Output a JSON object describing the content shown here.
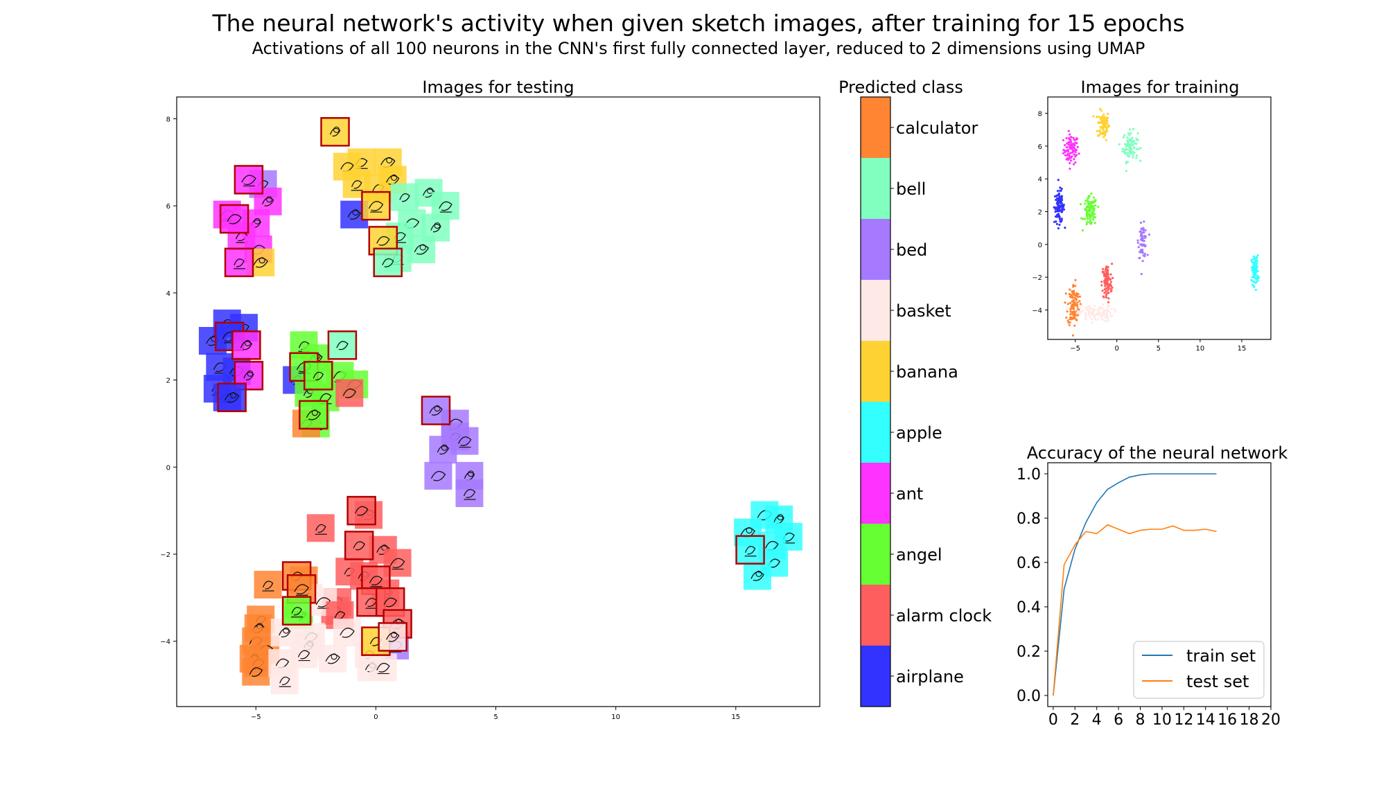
{
  "figure": {
    "title": "The neural network's activity when given sketch images, after training for 15 epochs",
    "subtitle": "Activations of all 100 neurons in the CNN's first fully connected layer, reduced to 2 dimensions using UMAP"
  },
  "colors": {
    "calculator": "#ff8533",
    "bell": "#80ffbf",
    "bed": "#a679ff",
    "basket": "#ffe9e6",
    "banana": "#ffd233",
    "apple": "#33ffff",
    "ant": "#ff33ff",
    "angel": "#66ff33",
    "alarm clock": "#ff5e5e",
    "airplane": "#3333ff",
    "highlight_border": "#b30000",
    "train_line": "#1f77b4",
    "test_line": "#ff7f0e"
  },
  "chart_data": [
    {
      "type": "scatter",
      "title": "Images for testing",
      "xlim": [
        -8.3,
        18.5
      ],
      "ylim": [
        -5.5,
        8.5
      ],
      "xticks": [
        "−5",
        "0",
        "5",
        "10",
        "15"
      ],
      "yticks": [
        "−4",
        "−2",
        "0",
        "2",
        "4",
        "6",
        "8"
      ],
      "note_markers": "each point drawn as a sketch thumbnail tinted with the predicted class color; red outline marks highlighted thumbnails",
      "points": [
        {
          "x": -1.7,
          "y": 7.7,
          "c": "banana",
          "h": true
        },
        {
          "x": -0.6,
          "y": 7.0,
          "c": "banana"
        },
        {
          "x": -1.2,
          "y": 6.9,
          "c": "banana"
        },
        {
          "x": 0.5,
          "y": 7.0,
          "c": "banana"
        },
        {
          "x": -0.8,
          "y": 6.5,
          "c": "banana"
        },
        {
          "x": 0.1,
          "y": 6.4,
          "c": "banana"
        },
        {
          "x": 0.7,
          "y": 6.6,
          "c": "banana"
        },
        {
          "x": 0.0,
          "y": 6.0,
          "c": "banana",
          "h": true
        },
        {
          "x": 1.2,
          "y": 6.2,
          "c": "bell"
        },
        {
          "x": 2.2,
          "y": 6.3,
          "c": "bell"
        },
        {
          "x": 2.9,
          "y": 6.0,
          "c": "bell"
        },
        {
          "x": 1.5,
          "y": 5.6,
          "c": "bell"
        },
        {
          "x": 2.5,
          "y": 5.5,
          "c": "bell"
        },
        {
          "x": 1.0,
          "y": 5.3,
          "c": "bell"
        },
        {
          "x": 0.3,
          "y": 5.2,
          "c": "banana",
          "h": true
        },
        {
          "x": 1.9,
          "y": 5.0,
          "c": "bell"
        },
        {
          "x": 0.9,
          "y": 4.8,
          "c": "bell"
        },
        {
          "x": 0.5,
          "y": 4.7,
          "c": "bell",
          "h": true
        },
        {
          "x": -0.9,
          "y": 5.8,
          "c": "airplane"
        },
        {
          "x": -5.3,
          "y": 6.6,
          "c": "ant",
          "h": true
        },
        {
          "x": -4.7,
          "y": 6.5,
          "c": "bed"
        },
        {
          "x": -4.5,
          "y": 6.1,
          "c": "ant"
        },
        {
          "x": -6.2,
          "y": 5.8,
          "c": "ant"
        },
        {
          "x": -5.9,
          "y": 5.7,
          "c": "ant",
          "h": true
        },
        {
          "x": -5.0,
          "y": 5.6,
          "c": "ant"
        },
        {
          "x": -5.6,
          "y": 5.3,
          "c": "ant"
        },
        {
          "x": -4.9,
          "y": 5.0,
          "c": "ant"
        },
        {
          "x": -4.8,
          "y": 4.7,
          "c": "banana"
        },
        {
          "x": -5.7,
          "y": 4.7,
          "c": "ant",
          "h": true
        },
        {
          "x": -6.2,
          "y": 3.3,
          "c": "airplane"
        },
        {
          "x": -6.8,
          "y": 2.9,
          "c": "airplane"
        },
        {
          "x": -6.1,
          "y": 3.0,
          "c": "airplane",
          "h": true
        },
        {
          "x": -5.5,
          "y": 3.2,
          "c": "airplane"
        },
        {
          "x": -5.4,
          "y": 2.8,
          "c": "ant",
          "h": true
        },
        {
          "x": -6.5,
          "y": 2.3,
          "c": "airplane"
        },
        {
          "x": -5.8,
          "y": 2.2,
          "c": "airplane"
        },
        {
          "x": -5.3,
          "y": 2.1,
          "c": "ant",
          "h": true
        },
        {
          "x": -6.6,
          "y": 1.8,
          "c": "airplane"
        },
        {
          "x": -6.2,
          "y": 1.6,
          "c": "airplane"
        },
        {
          "x": -6.0,
          "y": 1.6,
          "c": "airplane",
          "h": true
        },
        {
          "x": -3.0,
          "y": 2.8,
          "c": "angel"
        },
        {
          "x": -1.4,
          "y": 2.8,
          "c": "bell",
          "h": true
        },
        {
          "x": -2.5,
          "y": 2.5,
          "c": "angel"
        },
        {
          "x": -3.0,
          "y": 2.3,
          "c": "angel",
          "h": true
        },
        {
          "x": -2.4,
          "y": 2.1,
          "c": "angel",
          "h": true
        },
        {
          "x": -3.3,
          "y": 2.0,
          "c": "airplane"
        },
        {
          "x": -1.5,
          "y": 2.1,
          "c": "angel"
        },
        {
          "x": -0.9,
          "y": 1.9,
          "c": "angel"
        },
        {
          "x": -2.8,
          "y": 1.7,
          "c": "angel"
        },
        {
          "x": -2.1,
          "y": 1.6,
          "c": "angel"
        },
        {
          "x": -1.1,
          "y": 1.7,
          "c": "alarm clock"
        },
        {
          "x": -2.6,
          "y": 1.2,
          "c": "angel",
          "h": true
        },
        {
          "x": -2.5,
          "y": 1.0,
          "c": "angel"
        },
        {
          "x": -2.9,
          "y": 1.0,
          "c": "calculator"
        },
        {
          "x": 2.5,
          "y": 1.3,
          "c": "bed",
          "h": true
        },
        {
          "x": 3.3,
          "y": 1.0,
          "c": "bed"
        },
        {
          "x": 3.3,
          "y": 0.7,
          "c": "bed"
        },
        {
          "x": 2.8,
          "y": 0.4,
          "c": "bed"
        },
        {
          "x": 3.7,
          "y": 0.6,
          "c": "bed"
        },
        {
          "x": 2.6,
          "y": -0.2,
          "c": "bed"
        },
        {
          "x": 3.9,
          "y": -0.2,
          "c": "bed"
        },
        {
          "x": 3.9,
          "y": -0.6,
          "c": "bed"
        },
        {
          "x": -0.6,
          "y": -1.0,
          "c": "alarm clock",
          "h": true
        },
        {
          "x": -0.3,
          "y": -1.1,
          "c": "alarm clock"
        },
        {
          "x": -2.3,
          "y": -1.4,
          "c": "alarm clock"
        },
        {
          "x": -0.7,
          "y": -1.8,
          "c": "alarm clock",
          "h": true
        },
        {
          "x": 0.3,
          "y": -1.9,
          "c": "alarm clock"
        },
        {
          "x": 0.9,
          "y": -2.2,
          "c": "alarm clock"
        },
        {
          "x": -1.1,
          "y": -2.4,
          "c": "alarm clock"
        },
        {
          "x": -0.5,
          "y": -2.5,
          "c": "alarm clock"
        },
        {
          "x": 0.0,
          "y": -2.6,
          "c": "alarm clock",
          "h": true
        },
        {
          "x": 0.4,
          "y": -2.9,
          "c": "alarm clock"
        },
        {
          "x": -1.6,
          "y": -3.1,
          "c": "alarm clock"
        },
        {
          "x": -0.2,
          "y": -3.1,
          "c": "alarm clock",
          "h": true
        },
        {
          "x": 0.6,
          "y": -3.1,
          "c": "alarm clock",
          "h": true
        },
        {
          "x": 0.9,
          "y": -3.6,
          "c": "alarm clock",
          "h": true
        },
        {
          "x": -4.5,
          "y": -2.7,
          "c": "calculator"
        },
        {
          "x": -3.3,
          "y": -2.5,
          "c": "calculator",
          "h": true
        },
        {
          "x": -3.0,
          "y": -2.6,
          "c": "calculator"
        },
        {
          "x": -3.1,
          "y": -2.8,
          "c": "calculator",
          "h": true
        },
        {
          "x": -4.8,
          "y": -3.5,
          "c": "calculator"
        },
        {
          "x": -4.9,
          "y": -3.7,
          "c": "calculator"
        },
        {
          "x": -5.0,
          "y": -4.0,
          "c": "calculator"
        },
        {
          "x": -4.6,
          "y": -4.2,
          "c": "calculator"
        },
        {
          "x": -5.1,
          "y": -4.4,
          "c": "calculator"
        },
        {
          "x": -4.9,
          "y": -4.5,
          "c": "calculator"
        },
        {
          "x": -5.0,
          "y": -4.7,
          "c": "calculator"
        },
        {
          "x": -3.2,
          "y": -3.4,
          "c": "angel"
        },
        {
          "x": -3.3,
          "y": -3.3,
          "c": "angel",
          "h": true
        },
        {
          "x": -1.7,
          "y": -3.3,
          "c": "alarm clock"
        },
        {
          "x": -2.8,
          "y": -3.0,
          "c": "basket"
        },
        {
          "x": -2.2,
          "y": -3.1,
          "c": "basket"
        },
        {
          "x": -1.5,
          "y": -3.4,
          "c": "alarm clock"
        },
        {
          "x": -3.8,
          "y": -3.8,
          "c": "basket"
        },
        {
          "x": -2.7,
          "y": -3.9,
          "c": "basket"
        },
        {
          "x": -1.2,
          "y": -3.8,
          "c": "basket"
        },
        {
          "x": -2.8,
          "y": -4.1,
          "c": "basket"
        },
        {
          "x": -3.0,
          "y": -4.3,
          "c": "basket"
        },
        {
          "x": -3.9,
          "y": -4.5,
          "c": "basket"
        },
        {
          "x": -1.8,
          "y": -4.4,
          "c": "basket"
        },
        {
          "x": -3.8,
          "y": -4.9,
          "c": "basket"
        },
        {
          "x": 0.0,
          "y": -4.0,
          "c": "banana",
          "h": true
        },
        {
          "x": 0.7,
          "y": -3.9,
          "c": "basket",
          "h": true
        },
        {
          "x": 0.8,
          "y": -4.1,
          "c": "bed"
        },
        {
          "x": -0.3,
          "y": -4.3,
          "c": "basket"
        },
        {
          "x": -0.2,
          "y": -4.6,
          "c": "basket"
        },
        {
          "x": 0.3,
          "y": -4.6,
          "c": "basket"
        },
        {
          "x": 16.2,
          "y": -1.1,
          "c": "apple"
        },
        {
          "x": 16.8,
          "y": -1.2,
          "c": "apple"
        },
        {
          "x": 17.2,
          "y": -1.6,
          "c": "apple"
        },
        {
          "x": 16.5,
          "y": -1.8,
          "c": "apple"
        },
        {
          "x": 15.5,
          "y": -1.5,
          "c": "apple"
        },
        {
          "x": 15.6,
          "y": -1.9,
          "c": "apple",
          "h": true
        },
        {
          "x": 16.6,
          "y": -2.2,
          "c": "apple"
        },
        {
          "x": 15.9,
          "y": -2.5,
          "c": "apple"
        }
      ]
    },
    {
      "type": "colorbar",
      "title": "Predicted class",
      "classes": [
        "calculator",
        "bell",
        "bed",
        "basket",
        "banana",
        "apple",
        "ant",
        "angel",
        "alarm clock",
        "airplane"
      ]
    },
    {
      "type": "scatter",
      "title": "Images for training",
      "xlim": [
        -8.3,
        18.5
      ],
      "ylim": [
        -5.8,
        9.0
      ],
      "xticks": [
        "−5",
        "0",
        "5",
        "10",
        "15"
      ],
      "yticks": [
        "−4",
        "−2",
        "0",
        "2",
        "4",
        "6",
        "8"
      ],
      "clusters": [
        {
          "c": "ant",
          "x": -5.5,
          "y": 5.8,
          "sx": 0.45,
          "sy": 0.45,
          "n": 90
        },
        {
          "c": "banana",
          "x": -1.6,
          "y": 7.3,
          "sx": 0.35,
          "sy": 0.45,
          "n": 90
        },
        {
          "c": "bell",
          "x": 1.6,
          "y": 6.0,
          "sx": 0.45,
          "sy": 0.45,
          "n": 90
        },
        {
          "c": "airplane",
          "x": -6.9,
          "y": 2.3,
          "sx": 0.3,
          "sy": 0.5,
          "n": 110
        },
        {
          "c": "angel",
          "x": -3.2,
          "y": 2.0,
          "sx": 0.4,
          "sy": 0.45,
          "n": 100
        },
        {
          "c": "bed",
          "x": 3.1,
          "y": 0.2,
          "sx": 0.25,
          "sy": 0.5,
          "n": 70
        },
        {
          "c": "alarm clock",
          "x": -1.2,
          "y": -2.3,
          "sx": 0.3,
          "sy": 0.55,
          "n": 100
        },
        {
          "c": "calculator",
          "x": -5.2,
          "y": -3.7,
          "sx": 0.35,
          "sy": 0.65,
          "n": 110
        },
        {
          "c": "basket",
          "x": -2.5,
          "y": -4.2,
          "sx": 1.0,
          "sy": 0.25,
          "n": 110
        },
        {
          "c": "apple",
          "x": 16.6,
          "y": -1.6,
          "sx": 0.2,
          "sy": 0.45,
          "n": 90
        }
      ]
    },
    {
      "type": "line",
      "title": "Accuracy of the neural network",
      "xlim": [
        -0.5,
        20
      ],
      "ylim": [
        -0.05,
        1.05
      ],
      "xticks": [
        "0",
        "2",
        "4",
        "6",
        "8",
        "10",
        "12",
        "14",
        "16",
        "18",
        "20"
      ],
      "yticks": [
        "0.0",
        "0.2",
        "0.4",
        "0.6",
        "0.8",
        "1.0"
      ],
      "x": [
        0,
        1,
        2,
        3,
        4,
        5,
        6,
        7,
        8,
        9,
        10,
        11,
        12,
        13,
        14,
        15
      ],
      "series": [
        {
          "name": "train set",
          "color": "#1f77b4",
          "values": [
            0.0,
            0.48,
            0.66,
            0.78,
            0.87,
            0.93,
            0.96,
            0.985,
            0.995,
            1.0,
            1.0,
            1.0,
            1.0,
            1.0,
            1.0,
            1.0
          ]
        },
        {
          "name": "test set",
          "color": "#ff7f0e",
          "values": [
            0.0,
            0.59,
            0.68,
            0.74,
            0.73,
            0.77,
            0.75,
            0.73,
            0.745,
            0.75,
            0.75,
            0.765,
            0.745,
            0.745,
            0.75,
            0.74
          ]
        }
      ],
      "legend": "lower right"
    }
  ]
}
